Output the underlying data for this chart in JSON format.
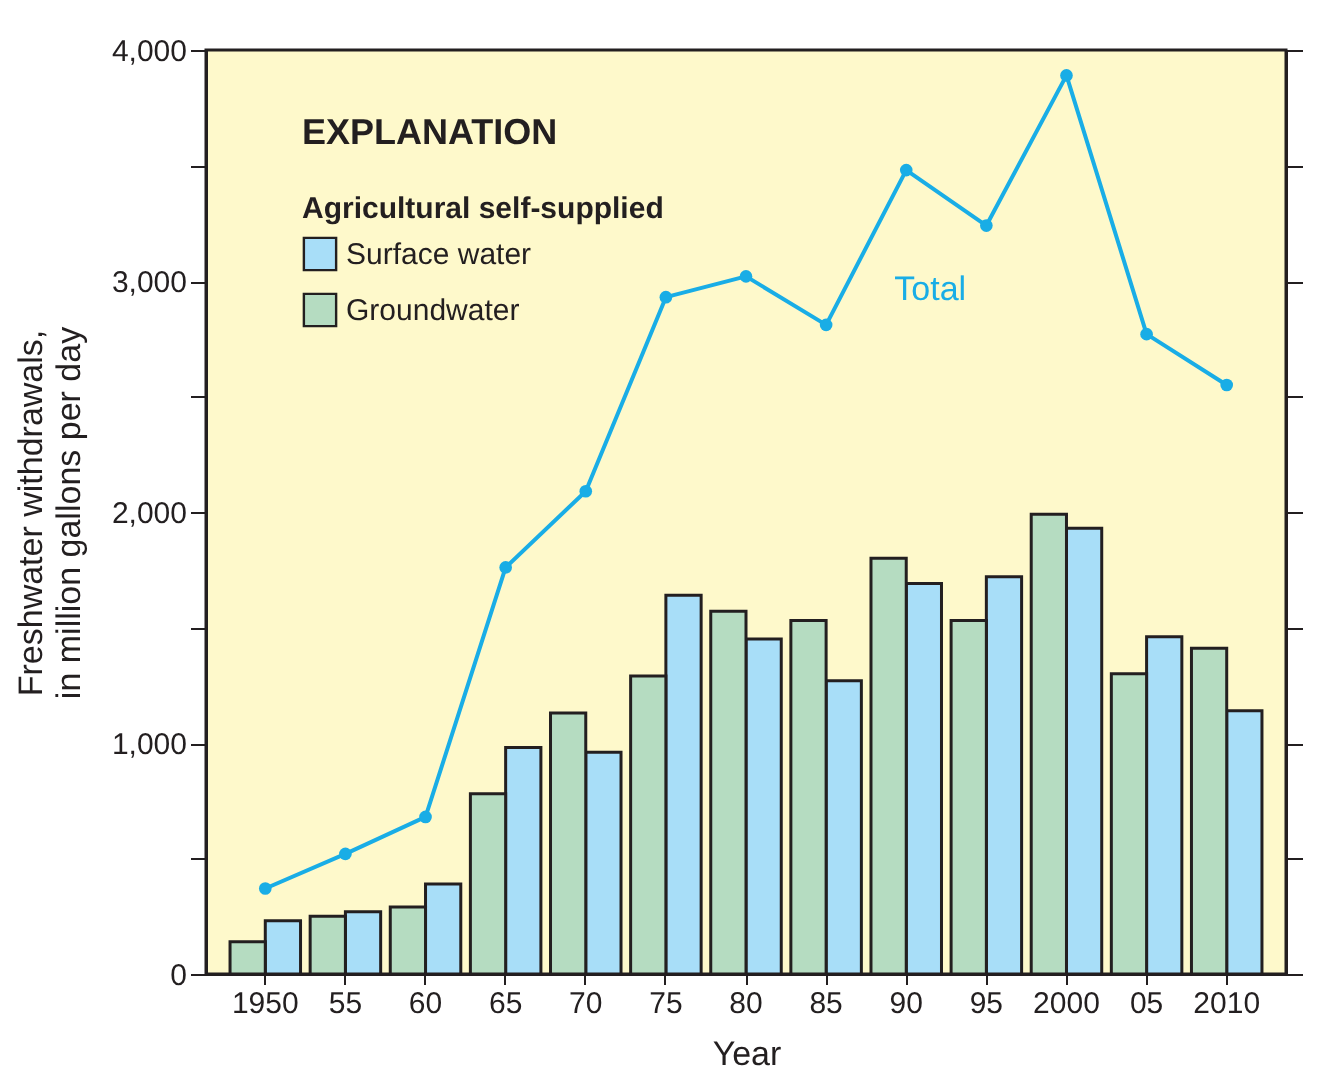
{
  "chart_data": {
    "type": "bar",
    "ylabel": "Freshwater withdrawals, in million gallons per day",
    "xlabel": "Year",
    "legend_title": "Agricultural self-supplied",
    "annotations": [
      "EXPLANATION"
    ],
    "categories": [
      "1950",
      "55",
      "60",
      "65",
      "70",
      "75",
      "80",
      "85",
      "90",
      "95",
      "2000",
      "05",
      "2010"
    ],
    "series": [
      {
        "name": "Surface water",
        "color": "#a8def8",
        "values": [
          230,
          270,
          390,
          980,
          960,
          1640,
          1450,
          1270,
          1690,
          1720,
          1930,
          1460,
          1140
        ]
      },
      {
        "name": "Groundwater",
        "color": "#b5dcc1",
        "values": [
          140,
          250,
          290,
          780,
          1130,
          1290,
          1570,
          1530,
          1800,
          1530,
          1990,
          1300,
          1410
        ]
      },
      {
        "name": "Total",
        "type": "line",
        "color": "#19ade6",
        "marker": "circle",
        "values": [
          370,
          520,
          680,
          1760,
          2090,
          2930,
          3020,
          2810,
          3480,
          3240,
          3890,
          2770,
          2550
        ]
      }
    ],
    "ylim": [
      0,
      4000
    ],
    "yticks": [
      {
        "value": 0,
        "label": "0"
      },
      {
        "value": 500,
        "label": null
      },
      {
        "value": 1000,
        "label": "1,000"
      },
      {
        "value": 1500,
        "label": null
      },
      {
        "value": 2000,
        "label": "2,000"
      },
      {
        "value": 2500,
        "label": null
      },
      {
        "value": 3000,
        "label": "3,000"
      },
      {
        "value": 3500,
        "label": null
      },
      {
        "value": 4000,
        "label": "4,000"
      }
    ],
    "grid": false,
    "legend": "top left"
  }
}
